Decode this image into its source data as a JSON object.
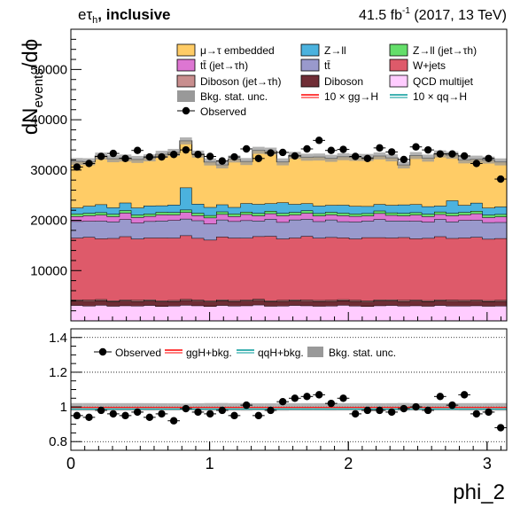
{
  "header": {
    "channel_prefix": "eτ",
    "channel_sub": "h",
    "channel_suffix": ", inclusive",
    "lumi_value": "41.5 fb",
    "lumi_exp": "-1",
    "lumi_suffix": " (2017, 13 TeV)"
  },
  "chart_data": [
    {
      "type": "area",
      "ylabel_main": "dN",
      "ylabel_sub": "events",
      "ylabel_tail": "/dϕ",
      "xlim": [
        0,
        3.1416
      ],
      "ylim": [
        0,
        58000
      ],
      "yticks": [
        10000,
        20000,
        30000,
        40000,
        50000
      ],
      "ytick_labels": [
        "10000",
        "20000",
        "30000",
        "40000",
        "50000"
      ],
      "bins": 36,
      "legend": [
        {
          "key": "emb",
          "label": "μ→τ embedded",
          "color": "#ffcc66",
          "kind": "box"
        },
        {
          "key": "zll",
          "label": "Z→ll",
          "color": "#4bb2de",
          "kind": "box"
        },
        {
          "key": "zllj",
          "label": "Z→ll (jet→τh)",
          "color": "#64de6a",
          "kind": "box",
          "sub": "h"
        },
        {
          "key": "ttj",
          "label": "tt̄ (jet→τh)",
          "color": "#dd76d2",
          "kind": "box"
        },
        {
          "key": "tt",
          "label": "tt̄",
          "color": "#9999cc",
          "kind": "box"
        },
        {
          "key": "wj",
          "label": "W+jets",
          "color": "#de5a6a",
          "kind": "box"
        },
        {
          "key": "vvj",
          "label": "Diboson (jet→τh)",
          "color": "#c88e8e",
          "kind": "box"
        },
        {
          "key": "vv",
          "label": "Diboson",
          "color": "#6f2d35",
          "kind": "box"
        },
        {
          "key": "qcd",
          "label": "QCD multijet",
          "color": "#ffccff",
          "kind": "box"
        },
        {
          "key": "unc",
          "label": "Bkg. stat. unc.",
          "color": "#999999",
          "kind": "box"
        },
        {
          "key": "ggh",
          "label": "10 × gg→H",
          "color": "#ff0000",
          "kind": "line"
        },
        {
          "key": "qqh",
          "label": "10 × qq→H",
          "color": "#009999",
          "kind": "line"
        },
        {
          "key": "obs",
          "label": "Observed",
          "color": "#000000",
          "kind": "marker"
        }
      ],
      "series": [
        {
          "name": "QCD multijet",
          "key": "qcd",
          "color": "#ffccff",
          "values": [
            3100,
            3000,
            3150,
            2950,
            3050,
            3000,
            3100,
            2900,
            3000,
            3150,
            3050,
            2900,
            3100,
            3000,
            3050,
            3200,
            2950,
            3000,
            3100,
            3050,
            2950,
            3000,
            3150,
            3000,
            2900,
            3050,
            3100,
            3000,
            3050,
            2950,
            3100,
            3000,
            3000,
            3050,
            2950,
            3000
          ]
        },
        {
          "name": "Diboson",
          "key": "vv",
          "color": "#6f2d35",
          "values": [
            900,
            950,
            920,
            900,
            940,
            910,
            920,
            930,
            900,
            950,
            920,
            910,
            930,
            900,
            940,
            920,
            910,
            930,
            920,
            900,
            940,
            930,
            910,
            920,
            900,
            950,
            920,
            910,
            930,
            920,
            900,
            940,
            920,
            910,
            930,
            920
          ]
        },
        {
          "name": "Diboson (jet→τh)",
          "key": "vvj",
          "color": "#c88e8e",
          "values": [
            200,
            200,
            200,
            200,
            200,
            200,
            200,
            200,
            200,
            200,
            200,
            200,
            200,
            200,
            200,
            200,
            200,
            200,
            200,
            200,
            200,
            200,
            200,
            200,
            200,
            200,
            200,
            200,
            200,
            200,
            200,
            200,
            200,
            200,
            200,
            200
          ]
        },
        {
          "name": "W+jets",
          "key": "wj",
          "color": "#de5a6a",
          "values": [
            12300,
            12500,
            12100,
            12400,
            12600,
            12200,
            12300,
            12500,
            12400,
            12700,
            12300,
            12100,
            12500,
            12400,
            12300,
            12500,
            12800,
            12200,
            12300,
            12700,
            12400,
            12500,
            12300,
            12200,
            12600,
            12400,
            12300,
            12500,
            12200,
            12400,
            12600,
            12300,
            12400,
            12500,
            12200,
            12300
          ]
        },
        {
          "name": "tt̄",
          "key": "tt",
          "color": "#9999cc",
          "values": [
            3300,
            3200,
            3500,
            3300,
            3400,
            3200,
            3300,
            3400,
            3500,
            3300,
            3500,
            3200,
            3400,
            3300,
            3500,
            3100,
            3400,
            3300,
            3600,
            3400,
            3300,
            3500,
            3200,
            3400,
            3300,
            3600,
            3400,
            3300,
            3500,
            3200,
            3400,
            3300,
            3500,
            3400,
            3300,
            3200
          ]
        },
        {
          "name": "tt̄ (jet→τh)",
          "key": "ttj",
          "color": "#dd76d2",
          "values": [
            1000,
            1100,
            1200,
            1000,
            1300,
            1100,
            1000,
            1200,
            1100,
            1300,
            1000,
            1200,
            1100,
            1000,
            1200,
            1000,
            1100,
            1300,
            1000,
            1200,
            1100,
            1000,
            1200,
            1100,
            1000,
            1200,
            1100,
            1000,
            1200,
            1100,
            1000,
            1200,
            1100,
            1300,
            1000,
            1100
          ]
        },
        {
          "name": "Z→ll (jet→τh)",
          "key": "zllj",
          "color": "#64de6a",
          "values": [
            500,
            500,
            500,
            500,
            500,
            500,
            500,
            500,
            500,
            500,
            500,
            500,
            500,
            500,
            500,
            500,
            500,
            500,
            500,
            500,
            500,
            500,
            500,
            500,
            500,
            500,
            500,
            500,
            500,
            500,
            500,
            500,
            500,
            500,
            500,
            500
          ]
        },
        {
          "name": "Z→ll",
          "key": "zll",
          "color": "#4bb2de",
          "values": [
            1200,
            1400,
            1600,
            1300,
            1500,
            1400,
            1600,
            1300,
            1500,
            4400,
            1800,
            1600,
            1400,
            1300,
            1700,
            1800,
            1500,
            2100,
            1600,
            1400,
            1500,
            1400,
            1600,
            1500,
            1400,
            1300,
            1500,
            1700,
            1600,
            1500,
            1200,
            2500,
            1400,
            1600,
            1400,
            1500
          ]
        },
        {
          "name": "μ→τ embedded",
          "key": "emb",
          "color": "#ffcc66",
          "values": [
            9200,
            8800,
            9600,
            9700,
            8900,
            9600,
            9500,
            10200,
            10400,
            9300,
            9900,
            9000,
            7900,
            9600,
            8300,
            10700,
            10400,
            8100,
            9700,
            9200,
            9700,
            9300,
            9600,
            9700,
            9700,
            9600,
            9400,
            7900,
            9700,
            9600,
            10300,
            9000,
            9000,
            8700,
            9500,
            8900
          ]
        }
      ],
      "unc_values": [
        700,
        700,
        700,
        700,
        700,
        700,
        700,
        700,
        700,
        700,
        700,
        700,
        700,
        700,
        700,
        700,
        700,
        700,
        700,
        700,
        700,
        700,
        700,
        700,
        700,
        700,
        700,
        700,
        700,
        700,
        700,
        700,
        700,
        700,
        700,
        700
      ],
      "observed": [
        30600,
        31300,
        32700,
        33300,
        32300,
        33900,
        32600,
        32600,
        33100,
        34000,
        33100,
        32700,
        31800,
        32600,
        34200,
        32300,
        33400,
        33500,
        32800,
        34200,
        35900,
        33900,
        34100,
        32700,
        32300,
        34400,
        33600,
        32100,
        34600,
        34000,
        33200,
        33200,
        32800,
        31300,
        32300,
        28200
      ]
    },
    {
      "type": "scatter",
      "xlabel": "phi_2",
      "xlim": [
        0,
        3.1416
      ],
      "ylim": [
        0.75,
        1.45
      ],
      "yticks": [
        0.8,
        1.0,
        1.2,
        1.4
      ],
      "ytick_labels": [
        "0.8",
        "1",
        "1.2",
        "1.4"
      ],
      "xticks": [
        0,
        1,
        2,
        3
      ],
      "xtick_labels": [
        "0",
        "1",
        "2",
        "3"
      ],
      "gridlines": [
        0.8,
        1.0,
        1.2,
        1.4
      ],
      "legend": [
        {
          "key": "obs",
          "label": "Observed",
          "kind": "marker",
          "color": "#000000"
        },
        {
          "key": "ggh",
          "label": "ggH+bkg.",
          "kind": "line",
          "color": "#ff0000"
        },
        {
          "key": "qqh",
          "label": "qqH+bkg.",
          "kind": "line",
          "color": "#009999"
        },
        {
          "key": "unc",
          "label": "Bkg. stat. unc.",
          "kind": "box",
          "color": "#999999"
        }
      ],
      "ratio": [
        0.95,
        0.94,
        0.98,
        0.96,
        0.95,
        0.97,
        0.94,
        0.96,
        0.92,
        0.99,
        0.97,
        0.96,
        0.98,
        0.95,
        1.01,
        0.95,
        0.98,
        1.03,
        1.05,
        1.06,
        1.07,
        1.02,
        1.05,
        0.96,
        0.98,
        0.98,
        0.97,
        0.99,
        1.0,
        0.98,
        1.06,
        1.01,
        1.07,
        0.96,
        0.97,
        0.88
      ]
    }
  ]
}
